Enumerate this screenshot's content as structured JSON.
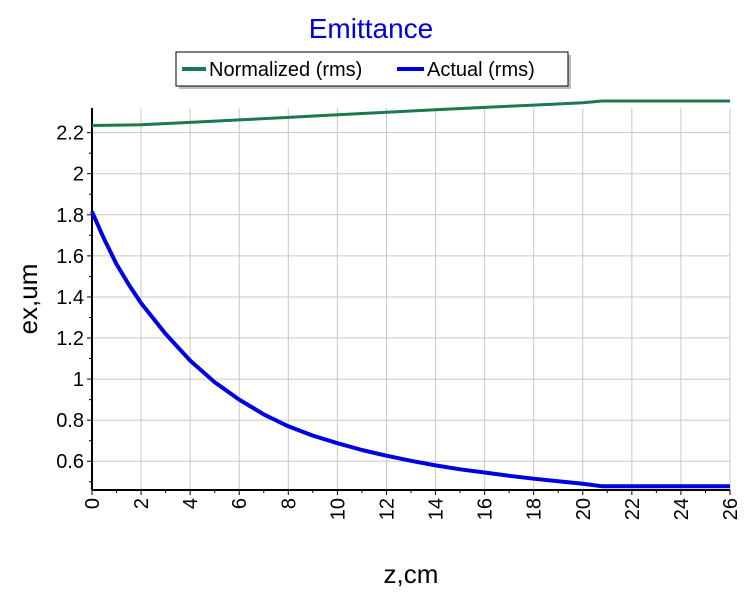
{
  "colors": {
    "title": "#0000dd",
    "grid": "#c8c8c8",
    "axis": "#000000",
    "normalized": "#1a7a4c",
    "actual": "#0000e0"
  },
  "chart_data": {
    "type": "line",
    "title": "Emittance",
    "xlabel": "z,cm",
    "ylabel": "ex,um",
    "xlim": [
      0,
      26
    ],
    "ylim": [
      0.46,
      2.32
    ],
    "xticks": [
      "0",
      "2",
      "4",
      "6",
      "8",
      "10",
      "12",
      "14",
      "16",
      "18",
      "20",
      "22",
      "24",
      "26"
    ],
    "xtick_values": [
      0,
      2,
      4,
      6,
      8,
      10,
      12,
      14,
      16,
      18,
      20,
      22,
      24,
      26
    ],
    "yticks": [
      "0.6",
      "0.8",
      "1",
      "1.2",
      "1.4",
      "1.6",
      "1.8",
      "2",
      "2.2"
    ],
    "ytick_values": [
      0.6,
      0.8,
      1.0,
      1.2,
      1.4,
      1.6,
      1.8,
      2.0,
      2.2
    ],
    "grid": true,
    "legend_position": "top-center",
    "series": [
      {
        "name": "Normalized (rms)",
        "color": "#1a7a4c",
        "x": [
          0,
          2,
          4,
          6,
          8,
          10,
          12,
          14,
          16,
          18,
          20,
          20.8,
          22,
          24,
          26
        ],
        "y": [
          2.235,
          2.238,
          2.25,
          2.262,
          2.274,
          2.287,
          2.299,
          2.311,
          2.323,
          2.334,
          2.346,
          2.354,
          2.354,
          2.354,
          2.354
        ]
      },
      {
        "name": "Actual (rms)",
        "color": "#0000e0",
        "x": [
          0,
          0.5,
          1,
          1.5,
          2,
          3,
          4,
          5,
          6,
          7,
          8,
          9,
          10,
          11,
          12,
          13,
          14,
          15,
          16,
          17,
          18,
          19,
          20,
          20.8,
          22,
          24,
          26
        ],
        "y": [
          1.815,
          1.68,
          1.56,
          1.46,
          1.37,
          1.22,
          1.09,
          0.985,
          0.9,
          0.828,
          0.77,
          0.725,
          0.688,
          0.655,
          0.627,
          0.602,
          0.58,
          0.561,
          0.545,
          0.529,
          0.515,
          0.503,
          0.49,
          0.478,
          0.478,
          0.478,
          0.478
        ]
      }
    ]
  }
}
